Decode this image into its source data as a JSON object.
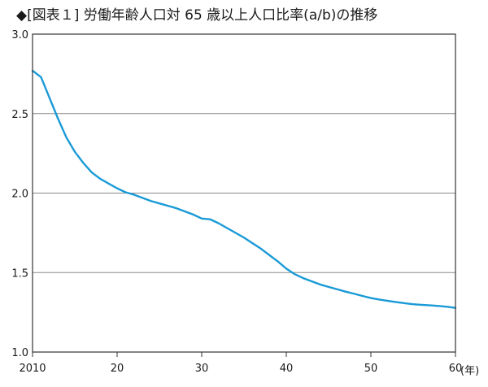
{
  "chart_data": {
    "type": "line",
    "title": "◆[図表１] 労働年齢人口対 65 歳以上人口比率(a/b)の推移",
    "xlabel": "",
    "ylabel": "",
    "x_unit_label": "(年)",
    "xlim": [
      2010,
      2060
    ],
    "ylim": [
      1.0,
      3.0
    ],
    "x_ticks": [
      2010,
      2020,
      2030,
      2040,
      2050,
      2060
    ],
    "x_tick_labels": [
      "2010",
      "20",
      "30",
      "40",
      "50",
      "60"
    ],
    "y_ticks": [
      1.0,
      1.5,
      2.0,
      2.5,
      3.0
    ],
    "y_tick_labels": [
      "1.0",
      "1.5",
      "2.0",
      "2.5",
      "3.0"
    ],
    "grid": "horizontal",
    "line_color": "#1a9ad6",
    "series": [
      {
        "x": [
          2010,
          2011,
          2012,
          2013,
          2014,
          2015,
          2016,
          2017,
          2018,
          2019,
          2020,
          2021,
          2022,
          2023,
          2024,
          2025,
          2026,
          2027,
          2028,
          2029,
          2030,
          2031,
          2032,
          2033,
          2034,
          2035,
          2036,
          2037,
          2038,
          2039,
          2040,
          2041,
          2042,
          2043,
          2044,
          2045,
          2046,
          2047,
          2048,
          2049,
          2050,
          2051,
          2052,
          2053,
          2054,
          2055,
          2056,
          2057,
          2058,
          2059,
          2060
        ],
        "values": [
          2.77,
          2.73,
          2.6,
          2.47,
          2.35,
          2.26,
          2.19,
          2.13,
          2.09,
          2.06,
          2.03,
          2.005,
          1.99,
          1.97,
          1.95,
          1.935,
          1.92,
          1.905,
          1.885,
          1.865,
          1.84,
          1.835,
          1.81,
          1.78,
          1.75,
          1.72,
          1.685,
          1.65,
          1.61,
          1.57,
          1.525,
          1.49,
          1.465,
          1.445,
          1.425,
          1.41,
          1.395,
          1.38,
          1.367,
          1.353,
          1.34,
          1.33,
          1.322,
          1.314,
          1.307,
          1.301,
          1.297,
          1.294,
          1.29,
          1.285,
          1.278
        ]
      }
    ]
  }
}
